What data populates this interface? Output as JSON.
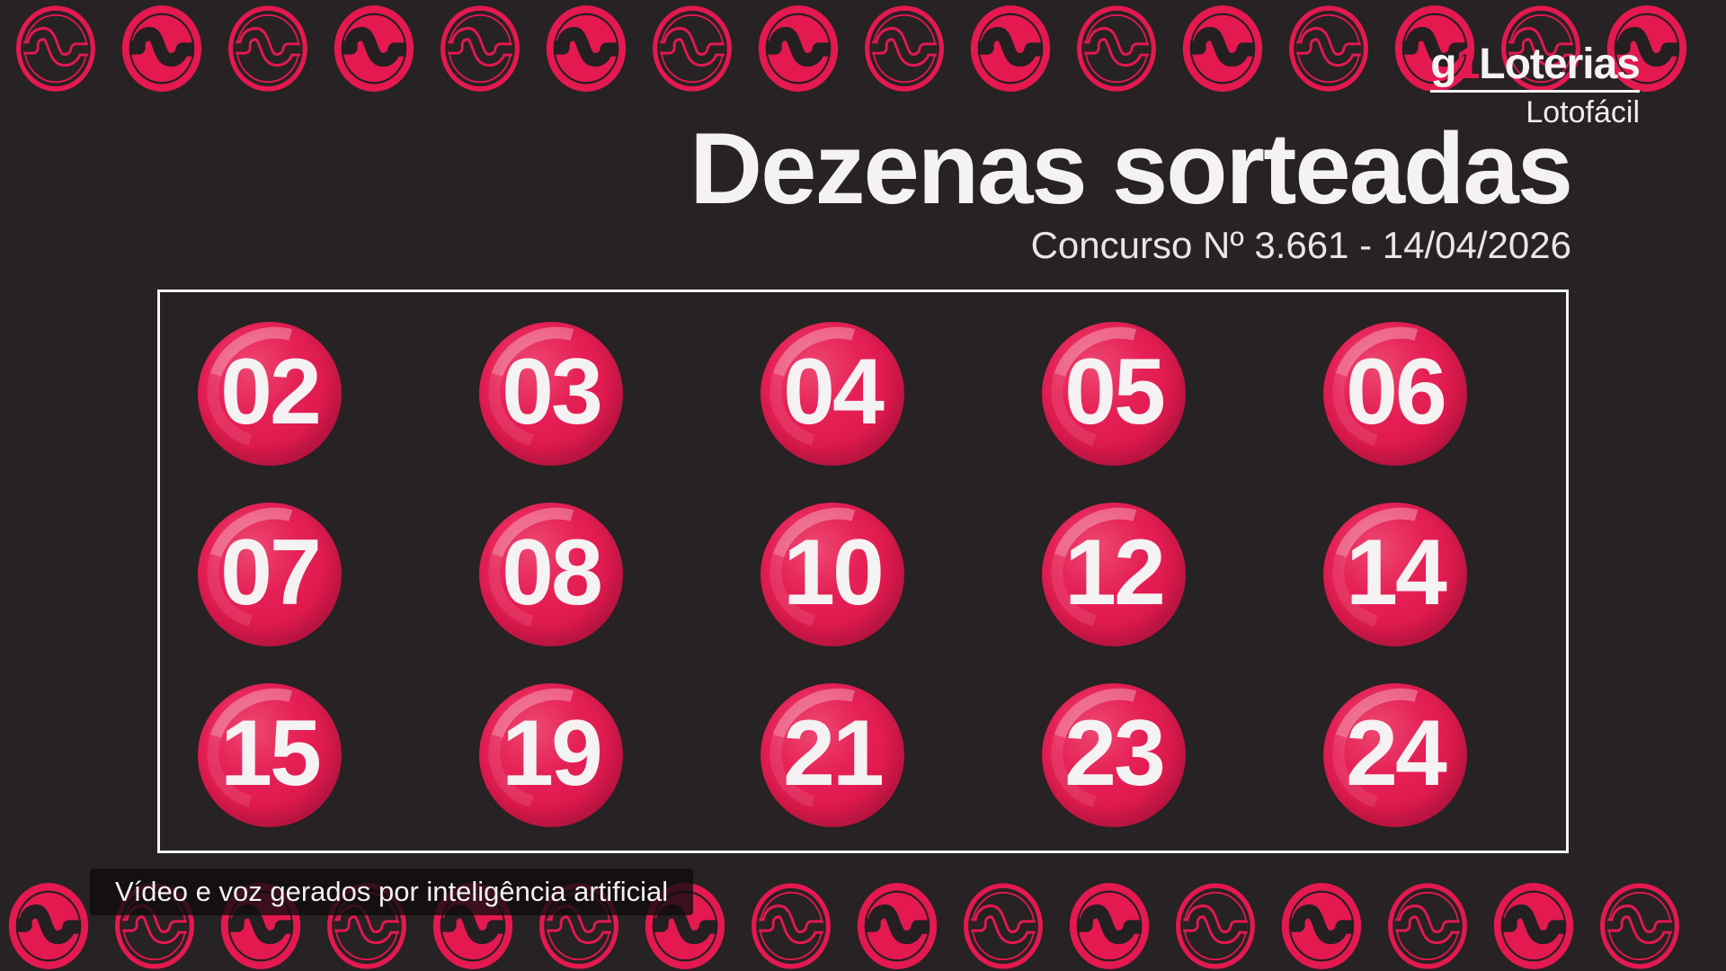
{
  "brand": {
    "g": "g",
    "one": "1",
    "name": "Loterias",
    "product": "Lotofácil"
  },
  "header": {
    "title": "Dezenas sorteadas",
    "contest": "Concurso Nº 3.661 - 14/04/2026"
  },
  "numbers": [
    "02",
    "03",
    "04",
    "05",
    "06",
    "07",
    "08",
    "10",
    "12",
    "14",
    "15",
    "19",
    "21",
    "23",
    "24"
  ],
  "footer": {
    "ai_disclaimer": "Vídeo e voz gerados por inteligência artificial"
  },
  "colors": {
    "background": "#272223",
    "accent": "#e31950",
    "accent_dark": "#c01240",
    "accent_light": "#ef6b92",
    "glyph_dark": "#241f21",
    "text": "#f4f2f2"
  },
  "decor": {
    "coin_icon": "money-coin-icon",
    "coin_rows": {
      "top": {
        "count": 16,
        "start": "outline"
      },
      "bottom": {
        "count": 16,
        "start": "filled"
      }
    }
  }
}
